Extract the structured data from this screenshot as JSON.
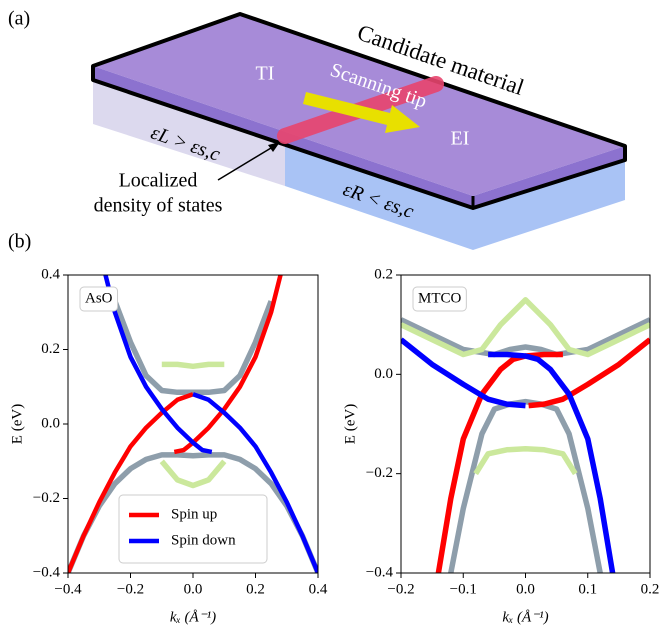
{
  "figure": {
    "panel_a": "(a)",
    "panel_b": "(b)"
  },
  "schematic": {
    "material": "Candidate material",
    "left_phase": "TI",
    "tip": "Scanning tip",
    "right_phase": "EI",
    "left_condition": "εL > εs,c",
    "right_condition": "εR < εs,c",
    "ldos_line1": "Localized",
    "ldos_line2": "density of states"
  },
  "chart_data": [
    {
      "type": "line",
      "annotation": "AsO",
      "xlabel": "kₓ (Å⁻¹)",
      "ylabel": "E (eV)",
      "xlim": [
        -0.4,
        0.4
      ],
      "ylim": [
        -0.4,
        0.4
      ],
      "xticks": [
        {
          "value": -0.4,
          "label": "−0.4"
        },
        {
          "value": -0.2,
          "label": "−0.2"
        },
        {
          "value": 0,
          "label": "0.0"
        },
        0.2,
        0.4
      ],
      "yticks": [
        {
          "value": -0.4,
          "label": "−0.4"
        },
        {
          "value": -0.2,
          "label": "−0.2"
        },
        {
          "value": 0,
          "label": "0.0"
        },
        0.2,
        0.4
      ],
      "legend": "lower center",
      "series": [
        {
          "color": "#8e9eab",
          "x": [
            -0.25,
            -0.2,
            -0.15,
            -0.1,
            -0.05,
            0,
            0.05,
            0.1,
            0.15,
            0.2,
            0.25
          ],
          "values": [
            0.33,
            0.22,
            0.13,
            0.09,
            0.085,
            0.085,
            0.085,
            0.09,
            0.13,
            0.22,
            0.33
          ]
        },
        {
          "color": "#8e9eab",
          "x": [
            -0.4,
            -0.35,
            -0.3,
            -0.25,
            -0.2,
            -0.15,
            -0.1,
            -0.05,
            0,
            0.05,
            0.1,
            0.15,
            0.2,
            0.25,
            0.3,
            0.35,
            0.4
          ],
          "values": [
            -0.4,
            -0.3,
            -0.22,
            -0.16,
            -0.12,
            -0.095,
            -0.083,
            -0.083,
            -0.085,
            -0.083,
            -0.083,
            -0.095,
            -0.12,
            -0.16,
            -0.22,
            -0.3,
            -0.4
          ]
        },
        {
          "color": "#cbe89c",
          "x": [
            -0.1,
            -0.05,
            0,
            0.05,
            0.1
          ],
          "values": [
            0.16,
            0.16,
            0.155,
            0.16,
            0.16
          ]
        },
        {
          "color": "#cbe89c",
          "x": [
            -0.1,
            -0.05,
            0,
            0.05,
            0.1
          ],
          "values": [
            -0.1,
            -0.15,
            -0.165,
            -0.15,
            -0.1
          ]
        },
        {
          "name": "Spin up",
          "color": "#ff0000",
          "x": [
            -0.4,
            -0.35,
            -0.3,
            -0.25,
            -0.2,
            -0.15,
            -0.1,
            -0.05,
            0,
            null,
            -0.06,
            -0.03,
            0,
            0.05,
            0.1,
            0.15,
            0.2,
            0.25,
            0.28
          ],
          "values": [
            -0.4,
            -0.3,
            -0.21,
            -0.13,
            -0.06,
            -0.01,
            0.03,
            0.065,
            0.08,
            null,
            -0.075,
            -0.07,
            -0.05,
            -0.01,
            0.04,
            0.1,
            0.18,
            0.3,
            0.4
          ]
        },
        {
          "name": "Spin down",
          "color": "#0000ff",
          "x": [
            0,
            0.05,
            0.1,
            0.15,
            0.2,
            0.25,
            0.3,
            0.35,
            0.4,
            null,
            -0.28,
            -0.25,
            -0.2,
            -0.15,
            -0.1,
            -0.05,
            0,
            0.03,
            0.06
          ],
          "values": [
            0.08,
            0.065,
            0.03,
            -0.01,
            -0.06,
            -0.13,
            -0.21,
            -0.3,
            -0.4,
            null,
            0.4,
            0.3,
            0.18,
            0.1,
            0.04,
            -0.01,
            -0.05,
            -0.07,
            -0.075
          ]
        }
      ]
    },
    {
      "type": "line",
      "annotation": "MTCO",
      "xlabel": "kₓ (Å⁻¹)",
      "ylabel": "E (eV)",
      "xlim": [
        -0.2,
        0.2
      ],
      "ylim": [
        -0.4,
        0.2
      ],
      "xticks": [
        {
          "value": -0.2,
          "label": "−0.2"
        },
        {
          "value": -0.1,
          "label": "−0.1"
        },
        {
          "value": 0,
          "label": "0.0"
        },
        0.1,
        0.2
      ],
      "yticks": [
        {
          "value": -0.4,
          "label": "−0.4"
        },
        {
          "value": -0.2,
          "label": "−0.2"
        },
        {
          "value": 0,
          "label": "0.0"
        },
        0.2
      ],
      "series": [
        {
          "color": "#8e9eab",
          "x": [
            -0.2,
            -0.15,
            -0.1,
            -0.05,
            -0.025,
            0,
            0.025,
            0.05,
            0.1,
            0.15,
            0.2
          ],
          "values": [
            0.11,
            0.08,
            0.05,
            0.04,
            0.05,
            0.055,
            0.05,
            0.04,
            0.05,
            0.08,
            0.11
          ]
        },
        {
          "color": "#8e9eab",
          "x": [
            -0.12,
            -0.1,
            -0.07,
            -0.05,
            -0.025,
            0,
            0.025,
            0.05,
            0.07,
            0.1,
            0.12
          ],
          "values": [
            -0.4,
            -0.27,
            -0.12,
            -0.07,
            -0.06,
            -0.055,
            -0.06,
            -0.07,
            -0.12,
            -0.27,
            -0.4
          ]
        },
        {
          "color": "#cbe89c",
          "x": [
            -0.2,
            -0.15,
            -0.1,
            -0.07,
            -0.04,
            0,
            0.04,
            0.07,
            0.1,
            0.15,
            0.2
          ],
          "values": [
            0.1,
            0.07,
            0.04,
            0.05,
            0.1,
            0.15,
            0.1,
            0.05,
            0.04,
            0.07,
            0.1
          ]
        },
        {
          "color": "#cbe89c",
          "x": [
            -0.08,
            -0.06,
            -0.03,
            0,
            0.03,
            0.06,
            0.08
          ],
          "values": [
            -0.2,
            -0.16,
            -0.152,
            -0.15,
            -0.152,
            -0.16,
            -0.2
          ]
        },
        {
          "color": "#ff0000",
          "x": [
            -0.14,
            -0.12,
            -0.1,
            -0.07,
            -0.04,
            -0.02,
            0,
            0.03,
            0.06,
            null,
            0.005,
            0.03,
            0.06,
            0.1,
            0.15,
            0.2
          ],
          "values": [
            -0.4,
            -0.25,
            -0.13,
            -0.04,
            0.01,
            0.03,
            0.037,
            0.04,
            0.04,
            null,
            -0.063,
            -0.06,
            -0.05,
            -0.02,
            0.02,
            0.07
          ]
        },
        {
          "color": "#0000ff",
          "x": [
            -0.2,
            -0.15,
            -0.1,
            -0.06,
            -0.03,
            0,
            null,
            -0.06,
            -0.03,
            0,
            0.02,
            0.04,
            0.07,
            0.1,
            0.12,
            0.14
          ],
          "values": [
            0.07,
            0.02,
            -0.02,
            -0.05,
            -0.06,
            -0.063,
            null,
            0.04,
            0.04,
            0.037,
            0.03,
            0.01,
            -0.04,
            -0.13,
            -0.25,
            -0.4
          ]
        }
      ]
    }
  ]
}
